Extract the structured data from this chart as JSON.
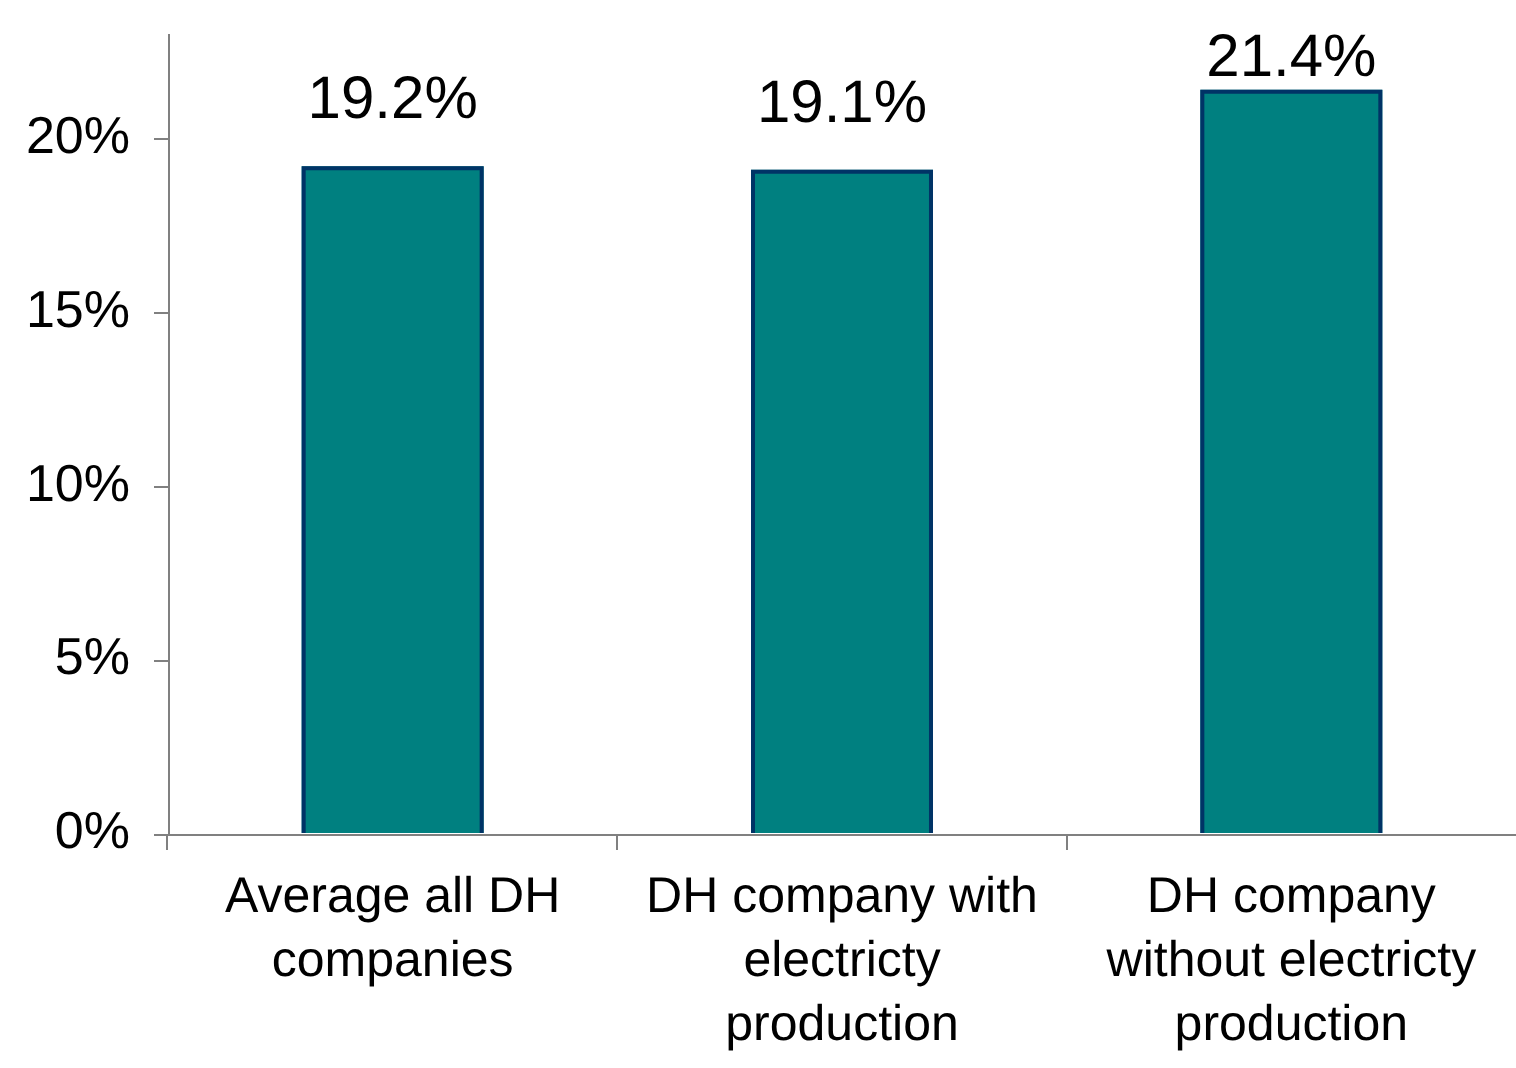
{
  "chart_data": {
    "type": "bar",
    "categories": [
      "Average all DH companies",
      "DH company with electricty production",
      "DH company without electricty production"
    ],
    "values": [
      19.2,
      19.1,
      21.4
    ],
    "color": "#008080",
    "value_labels": [
      "19.2%",
      "19.1%",
      "21.4%"
    ],
    "ylim": [
      0,
      23
    ],
    "yticks": [
      {
        "value": 0,
        "label": "0%"
      },
      {
        "value": 5,
        "label": "5%"
      },
      {
        "value": 10,
        "label": "10%"
      },
      {
        "value": 15,
        "label": "15%"
      },
      {
        "value": 20,
        "label": "20%"
      }
    ]
  }
}
